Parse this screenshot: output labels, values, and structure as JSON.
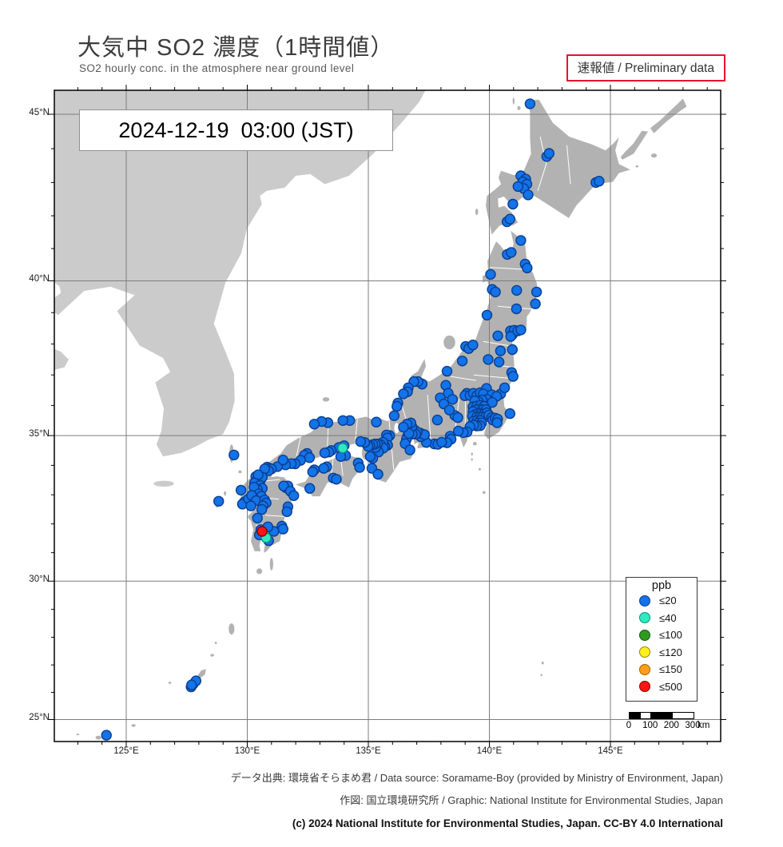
{
  "header": {
    "title": "大気中 SO2 濃度（1時間値）",
    "subtitle": "SO2 hourly conc. in the atmosphere near ground level",
    "preliminary": "速報値 / Preliminary data",
    "timestamp": "2024-12-19  03:00 (JST)"
  },
  "axes": {
    "lat_ticks": [
      {
        "value": 45,
        "label": "45°N"
      },
      {
        "value": 40,
        "label": "40°N"
      },
      {
        "value": 35,
        "label": "35°N"
      },
      {
        "value": 30,
        "label": "30°N"
      },
      {
        "value": 25,
        "label": "25°N"
      }
    ],
    "lon_ticks": [
      {
        "value": 125,
        "label": "125°E"
      },
      {
        "value": 130,
        "label": "130°E"
      },
      {
        "value": 135,
        "label": "135°E"
      },
      {
        "value": 140,
        "label": "140°E"
      },
      {
        "value": 145,
        "label": "145°E"
      }
    ]
  },
  "legend": {
    "title": "ppb"
  },
  "scalebar": {
    "labels": [
      "0",
      "100",
      "200",
      "300"
    ],
    "unit": "km"
  },
  "footer": {
    "line1": "データ出典: 環境省そらまめ君 / Data source: Soramame-Boy (provided by Ministry of Environment, Japan)",
    "line2": "作図: 国立環境研究所 / Graphic: National Institute for Environmental Studies, Japan",
    "line3": "(c) 2024 National Institute for Environmental Studies, Japan. CC-BY 4.0 International"
  },
  "chart_data": {
    "type": "scatter",
    "projection": "mercator",
    "map_extent": {
      "lon": [
        122.0,
        149.6
      ],
      "lat": [
        24.35,
        45.72
      ]
    },
    "units": "ppb",
    "series": [
      {
        "name": "≤20",
        "color": "#1373e8",
        "stroke": "#0a3d8f",
        "points": [
          [
            141.68,
            45.3
          ],
          [
            142.37,
            43.77
          ],
          [
            142.47,
            43.86
          ],
          [
            141.3,
            43.2
          ],
          [
            141.5,
            43.1
          ],
          [
            141.38,
            43.02
          ],
          [
            141.55,
            42.95
          ],
          [
            141.42,
            42.82
          ],
          [
            141.18,
            42.88
          ],
          [
            141.6,
            42.63
          ],
          [
            140.97,
            42.35
          ],
          [
            140.73,
            41.82
          ],
          [
            140.85,
            41.9
          ],
          [
            144.4,
            43.0
          ],
          [
            144.53,
            43.04
          ],
          [
            141.3,
            41.25
          ],
          [
            140.74,
            40.82
          ],
          [
            140.9,
            40.88
          ],
          [
            141.48,
            40.52
          ],
          [
            141.56,
            40.4
          ],
          [
            140.05,
            40.2
          ],
          [
            140.12,
            39.73
          ],
          [
            140.25,
            39.65
          ],
          [
            141.13,
            39.7
          ],
          [
            141.95,
            39.65
          ],
          [
            141.9,
            39.28
          ],
          [
            141.12,
            39.12
          ],
          [
            139.9,
            38.92
          ],
          [
            140.35,
            38.26
          ],
          [
            140.87,
            38.42
          ],
          [
            140.95,
            38.3
          ],
          [
            141.03,
            38.44
          ],
          [
            140.88,
            38.24
          ],
          [
            141.17,
            38.42
          ],
          [
            141.3,
            38.45
          ],
          [
            140.46,
            37.78
          ],
          [
            140.4,
            37.42
          ],
          [
            139.95,
            37.5
          ],
          [
            140.95,
            37.82
          ],
          [
            140.92,
            37.08
          ],
          [
            140.98,
            36.95
          ],
          [
            139.02,
            37.92
          ],
          [
            139.15,
            37.85
          ],
          [
            139.32,
            37.97
          ],
          [
            138.88,
            37.45
          ],
          [
            138.25,
            37.12
          ],
          [
            137.22,
            36.7
          ],
          [
            137.05,
            36.78
          ],
          [
            136.88,
            36.78
          ],
          [
            136.65,
            36.58
          ],
          [
            136.62,
            36.45
          ],
          [
            136.45,
            36.38
          ],
          [
            136.22,
            36.08
          ],
          [
            136.18,
            35.97
          ],
          [
            136.07,
            35.66
          ],
          [
            138.2,
            36.66
          ],
          [
            138.3,
            36.4
          ],
          [
            137.97,
            36.25
          ],
          [
            138.12,
            36.05
          ],
          [
            137.85,
            35.52
          ],
          [
            138.57,
            35.67
          ],
          [
            138.7,
            35.6
          ],
          [
            138.48,
            36.2
          ],
          [
            138.35,
            35.85
          ],
          [
            139.07,
            36.4
          ],
          [
            138.99,
            36.32
          ],
          [
            139.2,
            36.33
          ],
          [
            139.34,
            36.4
          ],
          [
            139.48,
            36.32
          ],
          [
            139.62,
            36.42
          ],
          [
            139.88,
            36.56
          ],
          [
            139.75,
            36.38
          ],
          [
            140.1,
            36.35
          ],
          [
            140.47,
            36.38
          ],
          [
            140.63,
            36.58
          ],
          [
            140.3,
            36.3
          ],
          [
            139.9,
            36.2
          ],
          [
            140.12,
            36.1
          ],
          [
            139.7,
            36.18
          ],
          [
            139.55,
            36.12
          ],
          [
            139.4,
            36.15
          ],
          [
            139.32,
            35.95
          ],
          [
            139.48,
            35.98
          ],
          [
            139.63,
            36.0
          ],
          [
            139.78,
            35.97
          ],
          [
            139.6,
            35.88
          ],
          [
            139.45,
            35.85
          ],
          [
            139.32,
            35.8
          ],
          [
            139.72,
            35.85
          ],
          [
            139.86,
            35.86
          ],
          [
            139.55,
            35.75
          ],
          [
            139.42,
            35.7
          ],
          [
            139.65,
            35.72
          ],
          [
            139.78,
            35.72
          ],
          [
            139.9,
            35.76
          ],
          [
            139.3,
            35.65
          ],
          [
            139.48,
            35.62
          ],
          [
            139.6,
            35.62
          ],
          [
            139.72,
            35.62
          ],
          [
            139.85,
            35.63
          ],
          [
            139.98,
            35.68
          ],
          [
            139.35,
            35.48
          ],
          [
            139.5,
            35.5
          ],
          [
            139.63,
            35.5
          ],
          [
            139.55,
            35.42
          ],
          [
            139.68,
            35.42
          ],
          [
            139.62,
            35.33
          ],
          [
            139.48,
            35.32
          ],
          [
            139.35,
            35.35
          ],
          [
            139.2,
            35.3
          ],
          [
            140.1,
            35.6
          ],
          [
            140.14,
            35.52
          ],
          [
            140.24,
            35.58
          ],
          [
            140.34,
            35.55
          ],
          [
            140.32,
            35.43
          ],
          [
            140.85,
            35.73
          ],
          [
            139.08,
            35.12
          ],
          [
            138.92,
            35.1
          ],
          [
            138.72,
            35.15
          ],
          [
            138.38,
            34.98
          ],
          [
            138.42,
            34.88
          ],
          [
            138.25,
            34.76
          ],
          [
            137.73,
            34.72
          ],
          [
            137.87,
            34.71
          ],
          [
            138.03,
            34.78
          ],
          [
            137.4,
            34.77
          ],
          [
            137.17,
            34.96
          ],
          [
            137.15,
            35.08
          ],
          [
            137.32,
            35.03
          ],
          [
            136.92,
            35.18
          ],
          [
            137.02,
            35.12
          ],
          [
            136.88,
            35.1
          ],
          [
            136.95,
            35.05
          ],
          [
            136.82,
            35.05
          ],
          [
            136.8,
            35.3
          ],
          [
            136.76,
            35.42
          ],
          [
            136.6,
            35.38
          ],
          [
            136.62,
            34.98
          ],
          [
            136.57,
            34.87
          ],
          [
            136.52,
            34.73
          ],
          [
            136.68,
            35.07
          ],
          [
            136.72,
            34.52
          ],
          [
            136.45,
            35.28
          ],
          [
            135.88,
            35.0
          ],
          [
            135.75,
            35.02
          ],
          [
            135.79,
            34.92
          ],
          [
            135.33,
            35.45
          ],
          [
            135.8,
            34.68
          ],
          [
            135.68,
            34.64
          ],
          [
            135.6,
            34.78
          ],
          [
            135.5,
            34.7
          ],
          [
            135.45,
            34.62
          ],
          [
            135.52,
            34.55
          ],
          [
            135.62,
            34.58
          ],
          [
            135.38,
            34.72
          ],
          [
            135.42,
            34.45
          ],
          [
            135.3,
            34.6
          ],
          [
            135.28,
            34.72
          ],
          [
            135.18,
            34.7
          ],
          [
            135.07,
            34.66
          ],
          [
            134.99,
            34.64
          ],
          [
            134.85,
            34.77
          ],
          [
            134.68,
            34.8
          ],
          [
            135.18,
            34.24
          ],
          [
            135.08,
            34.3
          ],
          [
            135.15,
            33.9
          ],
          [
            135.4,
            33.7
          ],
          [
            134.23,
            35.5
          ],
          [
            133.95,
            35.5
          ],
          [
            133.33,
            35.43
          ],
          [
            133.07,
            35.47
          ],
          [
            132.77,
            35.38
          ],
          [
            134.0,
            34.66
          ],
          [
            133.92,
            34.56
          ],
          [
            133.78,
            34.6
          ],
          [
            133.47,
            34.5
          ],
          [
            133.37,
            34.45
          ],
          [
            133.2,
            34.42
          ],
          [
            132.47,
            34.4
          ],
          [
            132.36,
            34.34
          ],
          [
            132.57,
            34.26
          ],
          [
            132.2,
            34.17
          ],
          [
            131.98,
            34.05
          ],
          [
            131.82,
            34.06
          ],
          [
            131.58,
            34.02
          ],
          [
            131.25,
            33.96
          ],
          [
            131.48,
            34.18
          ],
          [
            134.06,
            34.33
          ],
          [
            133.86,
            34.3
          ],
          [
            134.58,
            34.08
          ],
          [
            134.64,
            33.93
          ],
          [
            133.55,
            33.57
          ],
          [
            133.68,
            33.53
          ],
          [
            132.77,
            33.85
          ],
          [
            132.7,
            33.78
          ],
          [
            133.28,
            33.95
          ],
          [
            133.16,
            33.9
          ],
          [
            132.58,
            33.22
          ],
          [
            130.82,
            33.94
          ],
          [
            130.92,
            33.9
          ],
          [
            131.0,
            33.88
          ],
          [
            130.88,
            33.82
          ],
          [
            130.72,
            33.88
          ],
          [
            130.35,
            33.62
          ],
          [
            130.44,
            33.56
          ],
          [
            130.54,
            33.5
          ],
          [
            130.62,
            33.6
          ],
          [
            130.45,
            33.68
          ],
          [
            130.3,
            33.4
          ],
          [
            130.52,
            33.32
          ],
          [
            130.62,
            33.22
          ],
          [
            130.42,
            33.18
          ],
          [
            130.28,
            33.26
          ],
          [
            130.48,
            33.03
          ],
          [
            130.58,
            32.95
          ],
          [
            129.74,
            33.16
          ],
          [
            129.88,
            32.76
          ],
          [
            129.8,
            32.68
          ],
          [
            130.05,
            32.86
          ],
          [
            130.18,
            32.98
          ],
          [
            130.37,
            32.8
          ],
          [
            130.72,
            32.82
          ],
          [
            130.78,
            32.72
          ],
          [
            130.65,
            32.62
          ],
          [
            130.6,
            32.5
          ],
          [
            130.42,
            32.2
          ],
          [
            131.6,
            33.24
          ],
          [
            131.68,
            33.3
          ],
          [
            131.5,
            33.3
          ],
          [
            131.78,
            33.12
          ],
          [
            131.92,
            32.97
          ],
          [
            131.68,
            32.59
          ],
          [
            131.64,
            32.42
          ],
          [
            131.43,
            31.92
          ],
          [
            131.48,
            31.82
          ],
          [
            131.1,
            31.74
          ],
          [
            130.88,
            31.42
          ],
          [
            130.5,
            31.62
          ],
          [
            130.56,
            31.8
          ],
          [
            130.85,
            31.9
          ],
          [
            129.45,
            34.35
          ],
          [
            128.82,
            32.78
          ],
          [
            130.15,
            32.62
          ],
          [
            127.68,
            26.2
          ],
          [
            127.76,
            26.3
          ],
          [
            127.88,
            26.42
          ],
          [
            127.7,
            26.27
          ],
          [
            124.18,
            24.42
          ]
        ]
      },
      {
        "name": "≤40",
        "color": "#2fe9c3",
        "stroke": "#0e8f78",
        "points": [
          [
            133.94,
            34.58
          ],
          [
            130.78,
            31.52
          ]
        ]
      },
      {
        "name": "≤100",
        "color": "#2e9b20",
        "stroke": "#145c10",
        "points": []
      },
      {
        "name": "≤120",
        "color": "#ffee22",
        "stroke": "#8f8a00",
        "points": []
      },
      {
        "name": "≤150",
        "color": "#ff9e1b",
        "stroke": "#a85f00",
        "points": []
      },
      {
        "name": "≤500",
        "color": "#ff1414",
        "stroke": "#8f0000",
        "points": [
          [
            130.61,
            31.74
          ]
        ]
      }
    ]
  }
}
